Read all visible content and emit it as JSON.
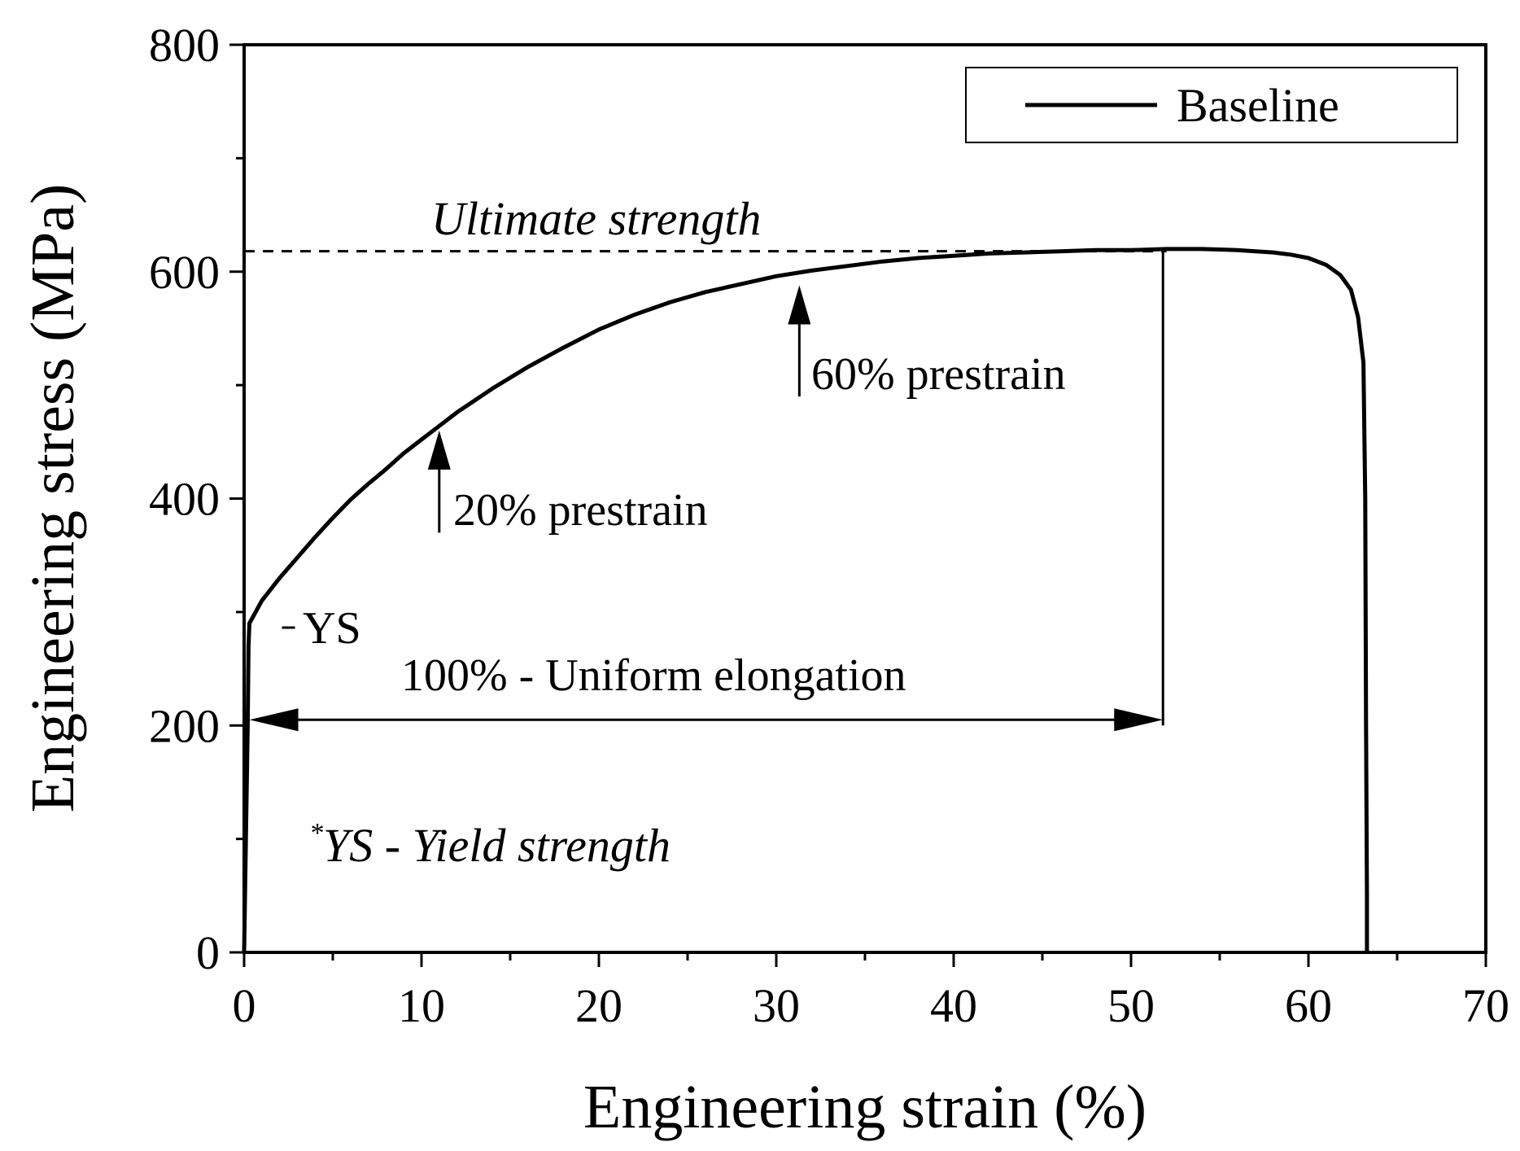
{
  "chart_data": {
    "type": "line",
    "title": "",
    "xlabel": "Engineering strain (%)",
    "ylabel": "Engineering stress (MPa)",
    "xlim": [
      0,
      70
    ],
    "ylim": [
      0,
      800
    ],
    "x_ticks": [
      0,
      10,
      20,
      30,
      40,
      50,
      60,
      70
    ],
    "y_ticks": [
      0,
      200,
      400,
      600,
      800
    ],
    "x_tick_labels": [
      "0",
      "10",
      "20",
      "30",
      "40",
      "50",
      "60",
      "70"
    ],
    "y_tick_labels": [
      "0",
      "200",
      "400",
      "600",
      "800"
    ],
    "x_minor_ticks": [
      5,
      15,
      25,
      35,
      45,
      55,
      65
    ],
    "y_minor_ticks": [
      100,
      300,
      500,
      700
    ],
    "grid": false,
    "legend": {
      "position": "top-right",
      "entries": [
        "Baseline"
      ]
    },
    "series": [
      {
        "name": "Baseline",
        "x": [
          0,
          0.1,
          0.2,
          0.25,
          0.3,
          1,
          2,
          3,
          4,
          5,
          6,
          7,
          8,
          9,
          10,
          11,
          12,
          14,
          16,
          18,
          20,
          22,
          24,
          26,
          28,
          30,
          32,
          34,
          36,
          38,
          40,
          42,
          44,
          46,
          48,
          50,
          52,
          54,
          56,
          58,
          59,
          60,
          61,
          61.8,
          62.4,
          62.8,
          63.1,
          63.2,
          63.25,
          63.3,
          63.3
        ],
        "y": [
          0,
          100,
          200,
          270,
          290,
          310,
          330,
          348,
          366,
          383,
          399,
          413,
          426,
          440,
          452,
          464,
          476,
          497,
          516,
          533,
          549,
          562,
          573,
          582,
          589,
          596,
          601,
          605,
          609,
          612,
          614,
          616,
          617,
          618,
          619,
          619,
          620,
          620,
          619,
          617,
          615,
          612,
          606,
          597,
          584,
          560,
          520,
          400,
          200,
          50,
          0
        ]
      }
    ],
    "annotations": {
      "ultimate_strength": {
        "label": "Ultimate strength",
        "y": 618,
        "x_start": 0,
        "x_end": 52
      },
      "uniform_elongation": {
        "label": "100% - Uniform elongation",
        "x_start": 0.3,
        "x_end": 51.8,
        "y": 205,
        "vline_x": 51.8
      },
      "prestrain_20": {
        "label": "20% prestrain",
        "x": 11,
        "y_tip": 460,
        "y_tail": 370
      },
      "prestrain_60": {
        "label": "60% prestrain",
        "x": 31.3,
        "y_tip": 588,
        "y_tail": 490
      },
      "ys": {
        "label": "YS",
        "x": 0.3,
        "y": 292
      },
      "footnote": {
        "marker": "*",
        "label": "YS - Yield strength"
      }
    }
  }
}
